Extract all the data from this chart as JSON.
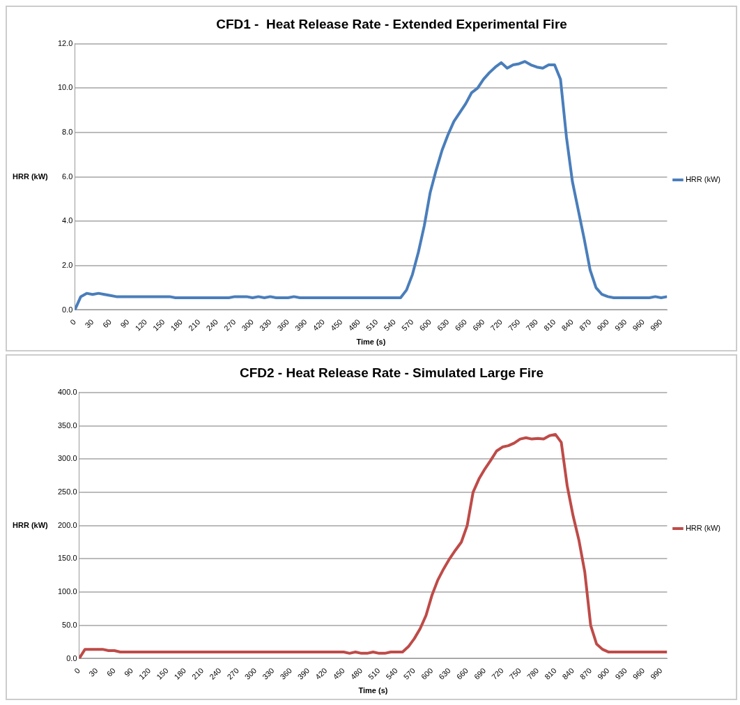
{
  "chart_data": [
    {
      "type": "line",
      "title": "CFD1 -  Heat Release Rate - Extended Experimental Fire",
      "xlabel": "Time (s)",
      "ylabel": "HRR (kW)",
      "legend": "right",
      "grid": "y",
      "marker": "none",
      "line_style": "solid",
      "xlim": [
        0,
        1000
      ],
      "xticks": [
        0,
        30,
        60,
        90,
        120,
        150,
        180,
        210,
        240,
        270,
        300,
        330,
        360,
        390,
        420,
        450,
        480,
        510,
        540,
        570,
        600,
        630,
        660,
        690,
        720,
        750,
        780,
        810,
        840,
        870,
        900,
        930,
        960,
        990
      ],
      "ylim": [
        0,
        12
      ],
      "yticks": [
        {
          "value": 0,
          "label": "0.0"
        },
        {
          "value": 2,
          "label": "2.0"
        },
        {
          "value": 4,
          "label": "4.0"
        },
        {
          "value": 6,
          "label": "6.0"
        },
        {
          "value": 8,
          "label": "8.0"
        },
        {
          "value": 10,
          "label": "10.0"
        },
        {
          "value": 12,
          "label": "12.0"
        }
      ],
      "series": [
        {
          "name": "HRR (kW)",
          "color": "#4a7ebb",
          "x": [
            0,
            10,
            20,
            30,
            40,
            50,
            60,
            70,
            160,
            170,
            260,
            270,
            290,
            300,
            310,
            320,
            330,
            340,
            360,
            370,
            380,
            550,
            560,
            570,
            580,
            590,
            600,
            610,
            620,
            630,
            640,
            650,
            660,
            670,
            680,
            690,
            700,
            710,
            720,
            730,
            740,
            750,
            760,
            770,
            780,
            790,
            800,
            810,
            820,
            830,
            840,
            850,
            860,
            870,
            880,
            890,
            900,
            910,
            970,
            980,
            990,
            1000
          ],
          "values": [
            0,
            0.6,
            0.75,
            0.7,
            0.75,
            0.7,
            0.65,
            0.6,
            0.6,
            0.55,
            0.55,
            0.6,
            0.6,
            0.55,
            0.6,
            0.55,
            0.6,
            0.55,
            0.55,
            0.6,
            0.55,
            0.55,
            0.9,
            1.6,
            2.6,
            3.8,
            5.3,
            6.3,
            7.2,
            7.9,
            8.5,
            8.9,
            9.3,
            9.8,
            10.0,
            10.4,
            10.7,
            10.95,
            11.15,
            10.9,
            11.05,
            11.1,
            11.2,
            11.05,
            10.95,
            10.9,
            11.05,
            11.05,
            10.4,
            7.8,
            5.8,
            4.5,
            3.2,
            1.8,
            1.0,
            0.7,
            0.6,
            0.55,
            0.55,
            0.6,
            0.55,
            0.6
          ]
        }
      ]
    },
    {
      "type": "line",
      "title": "CFD2 - Heat Release Rate - Simulated Large Fire",
      "xlabel": "Time (s)",
      "ylabel": "HRR (kW)",
      "legend": "right",
      "grid": "y",
      "marker": "none",
      "line_style": "solid",
      "xlim": [
        0,
        1000
      ],
      "xticks": [
        0,
        30,
        60,
        90,
        120,
        150,
        180,
        210,
        240,
        270,
        300,
        330,
        360,
        390,
        420,
        450,
        480,
        510,
        540,
        570,
        600,
        630,
        660,
        690,
        720,
        750,
        780,
        810,
        840,
        870,
        900,
        930,
        960,
        990
      ],
      "ylim": [
        0,
        400
      ],
      "yticks": [
        {
          "value": 0,
          "label": "0.0"
        },
        {
          "value": 50,
          "label": "50.0"
        },
        {
          "value": 100,
          "label": "100.0"
        },
        {
          "value": 150,
          "label": "150.0"
        },
        {
          "value": 200,
          "label": "200.0"
        },
        {
          "value": 250,
          "label": "250.0"
        },
        {
          "value": 300,
          "label": "300.0"
        },
        {
          "value": 350,
          "label": "350.0"
        },
        {
          "value": 400,
          "label": "400.0"
        }
      ],
      "series": [
        {
          "name": "HRR (kW)",
          "color": "#be4b48",
          "x": [
            0,
            10,
            20,
            30,
            40,
            50,
            60,
            70,
            450,
            460,
            470,
            480,
            490,
            500,
            510,
            520,
            530,
            550,
            560,
            570,
            580,
            590,
            600,
            610,
            620,
            630,
            640,
            650,
            660,
            670,
            680,
            690,
            700,
            710,
            720,
            730,
            740,
            750,
            760,
            770,
            780,
            790,
            800,
            810,
            820,
            830,
            840,
            850,
            860,
            870,
            880,
            890,
            900,
            1000
          ],
          "values": [
            0,
            14,
            14,
            14,
            14,
            12,
            12,
            10,
            10,
            8,
            10,
            8,
            8,
            10,
            8,
            8,
            10,
            10,
            18,
            30,
            45,
            65,
            95,
            118,
            135,
            150,
            163,
            175,
            200,
            250,
            270,
            285,
            298,
            312,
            318,
            320,
            324,
            330,
            332,
            330,
            331,
            330,
            335,
            337,
            325,
            260,
            215,
            178,
            130,
            50,
            22,
            14,
            10,
            10
          ]
        }
      ]
    }
  ]
}
